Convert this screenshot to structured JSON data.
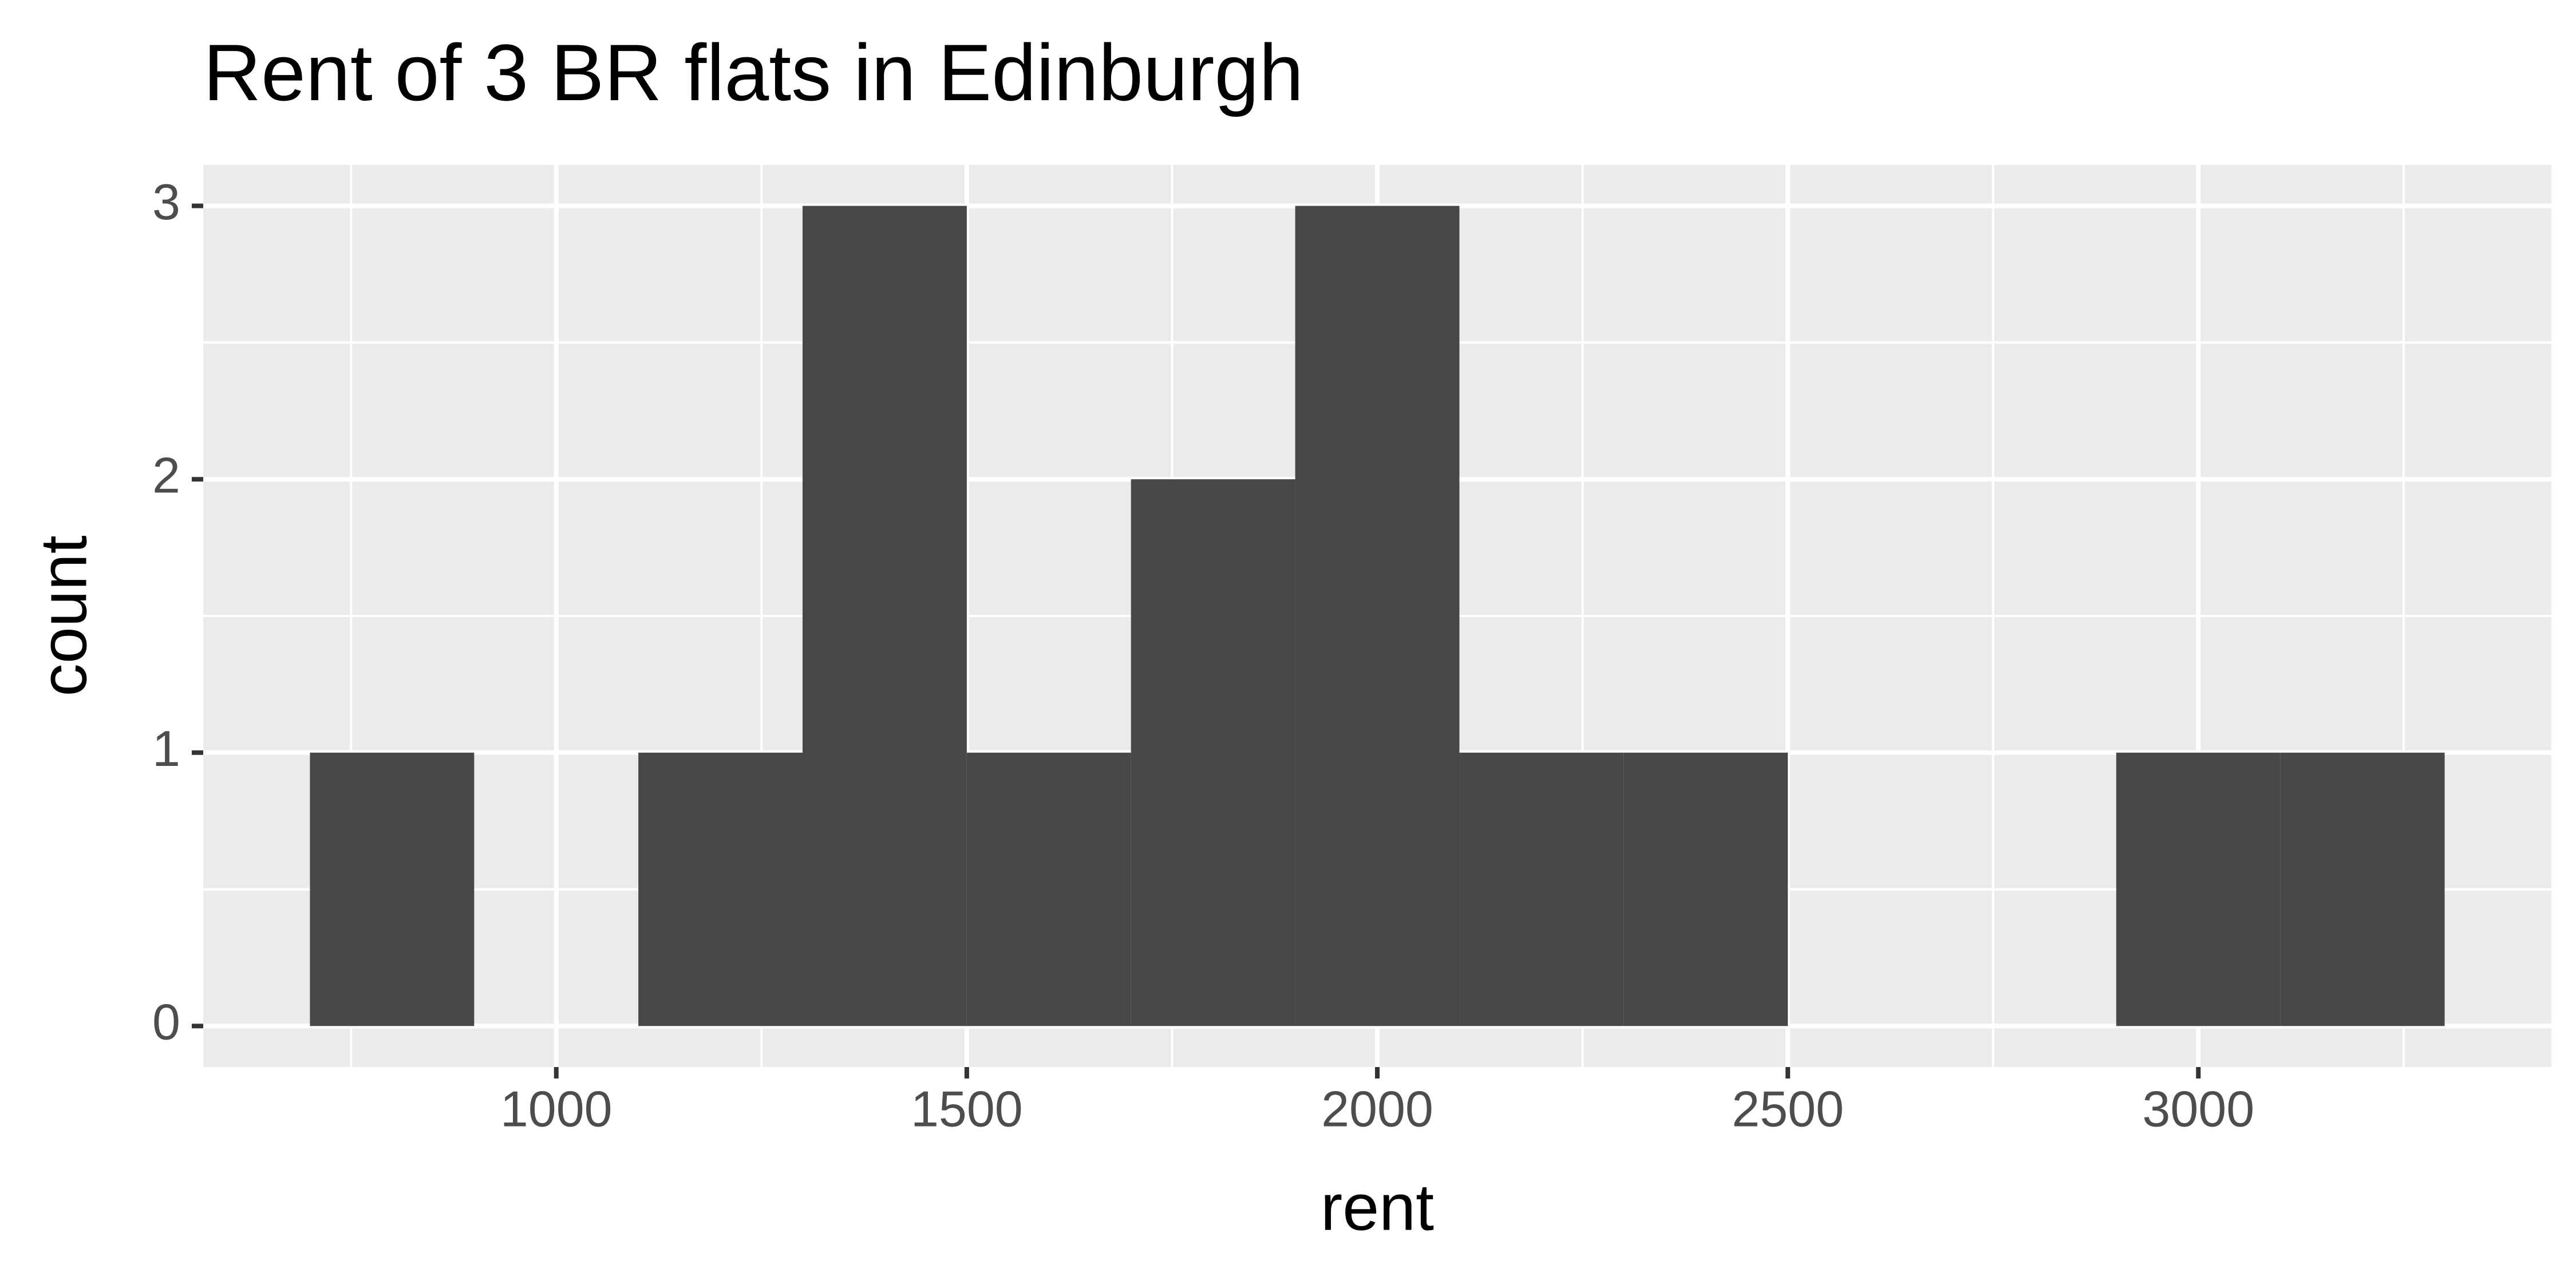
{
  "chart_data": {
    "type": "histogram",
    "title": "Rent of 3 BR flats in Edinburgh",
    "x_label": "rent",
    "y_label": "count",
    "bins": [
      700,
      900,
      1100,
      1300,
      1500,
      1700,
      1900,
      2100,
      2300,
      2500,
      2700,
      2900,
      3100,
      3300
    ],
    "values": [
      1,
      0,
      1,
      3,
      1,
      2,
      3,
      1,
      1,
      0,
      0,
      1,
      1
    ],
    "color": "#474747",
    "xlim": [
      570,
      3430
    ],
    "xticks": [
      1000,
      1500,
      2000,
      2500,
      3000
    ],
    "xminor": [
      750,
      1250,
      1750,
      2250,
      2750,
      3250
    ],
    "ylim": [
      -0.15,
      3.15
    ],
    "yticks": [
      0,
      1,
      2,
      3
    ],
    "yminor": [
      0.5,
      1.5,
      2.5
    ],
    "grid": true
  }
}
